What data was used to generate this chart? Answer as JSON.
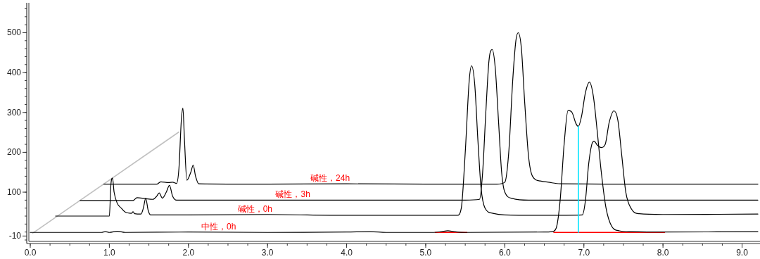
{
  "chart_data": {
    "type": "line",
    "xlim": [
      0,
      9.2
    ],
    "ylim": [
      -20,
      575
    ],
    "xticks": [
      {
        "value": 0,
        "label": "0.0"
      },
      {
        "value": 1,
        "label": "1.0"
      },
      {
        "value": 2,
        "label": "2.0"
      },
      {
        "value": 3,
        "label": "3.0"
      },
      {
        "value": 4,
        "label": "4.0"
      },
      {
        "value": 5,
        "label": "5.0"
      },
      {
        "value": 6,
        "label": "6.0"
      },
      {
        "value": 7,
        "label": "7.0"
      },
      {
        "value": 8,
        "label": "8.0"
      },
      {
        "value": 9,
        "label": "9.0"
      }
    ],
    "yticks": [
      -10,
      100,
      200,
      300,
      400,
      500
    ],
    "series": [
      {
        "type": "line",
        "color": "#c0c0c0",
        "x": [
          0.03,
          1.88
        ],
        "values": [
          -3,
          251
        ]
      },
      {
        "type": "line",
        "color": "#ff0000",
        "x": [
          5.12,
          5.52
        ],
        "values": [
          -1,
          -1
        ]
      },
      {
        "type": "line",
        "color": "#ff0000",
        "x": [
          6.62,
          8.02
        ],
        "values": [
          -1,
          -1
        ]
      },
      {
        "name": "中性，0h",
        "color": "#000000",
        "x": [
          0,
          0.9,
          0.95,
          1.0,
          1.1,
          1.2,
          2.0,
          3.0,
          4.0,
          4.3,
          4.5,
          5.1,
          5.2,
          5.28,
          5.36,
          5.5,
          6.5,
          6.6,
          6.65,
          6.7,
          6.75,
          6.8,
          6.85,
          6.9,
          6.93,
          6.97,
          7.02,
          7.07,
          7.12,
          7.17,
          7.22,
          7.28,
          7.35,
          7.45,
          7.6,
          8.0,
          9.2
        ],
        "values": [
          -1,
          -1,
          1,
          -1,
          2,
          -1,
          0,
          -1,
          0,
          1,
          -1,
          -1,
          1,
          3,
          1,
          -1,
          0,
          1,
          10,
          80,
          220,
          305,
          300,
          272,
          265,
          290,
          350,
          376,
          340,
          250,
          150,
          60,
          15,
          3,
          1,
          0,
          1
        ]
      },
      {
        "name": "碱性，0h",
        "color": "#000000",
        "x": [
          0.32,
          1.0,
          1.02,
          1.04,
          1.06,
          1.1,
          1.15,
          1.2,
          1.28,
          1.3,
          1.32,
          1.4,
          1.43,
          1.46,
          1.49,
          1.52,
          2.0,
          3.0,
          4.0,
          5.0,
          5.4,
          5.45,
          5.5,
          5.55,
          5.58,
          5.62,
          5.66,
          5.7,
          5.75,
          5.85,
          6.0,
          6.5,
          6.98,
          7.02,
          7.06,
          7.1,
          7.13,
          7.17,
          7.22,
          7.27,
          7.32,
          7.38,
          7.43,
          7.48,
          7.53,
          7.6,
          7.7,
          8.0,
          9.2
        ],
        "values": [
          40,
          40,
          120,
          135,
          100,
          72,
          60,
          50,
          47,
          51,
          46,
          45,
          60,
          85,
          55,
          43,
          43,
          44,
          42,
          42,
          42,
          60,
          200,
          380,
          417,
          370,
          230,
          110,
          60,
          47,
          43,
          42,
          43,
          80,
          170,
          220,
          228,
          218,
          212,
          220,
          275,
          304,
          280,
          190,
          100,
          58,
          46,
          44,
          45
        ]
      },
      {
        "name": "碱性，3h",
        "color": "#000000",
        "x": [
          0.63,
          1.3,
          1.35,
          1.45,
          1.55,
          1.6,
          1.63,
          1.67,
          1.72,
          1.76,
          1.8,
          1.85,
          2.5,
          3.5,
          4.5,
          5.5,
          5.68,
          5.72,
          5.76,
          5.8,
          5.84,
          5.88,
          5.92,
          5.96,
          6.0,
          6.1,
          6.3,
          7.0,
          8.0,
          9.2
        ],
        "values": [
          79,
          79,
          86,
          84,
          82,
          90,
          98,
          85,
          100,
          117,
          90,
          80,
          80,
          80,
          80,
          80,
          82,
          150,
          300,
          430,
          458,
          410,
          280,
          150,
          100,
          84,
          80,
          80,
          80,
          80
        ]
      },
      {
        "name": "碱性，24h",
        "color": "#000000",
        "x": [
          0.93,
          1.6,
          1.65,
          1.75,
          1.8,
          1.85,
          1.88,
          1.91,
          1.93,
          1.95,
          1.98,
          2.03,
          2.06,
          2.09,
          2.13,
          3,
          4,
          5,
          5.9,
          6.0,
          6.05,
          6.1,
          6.14,
          6.17,
          6.21,
          6.25,
          6.3,
          6.35,
          6.45,
          6.55,
          6.7,
          8.0,
          9.2
        ],
        "values": [
          120,
          120,
          126,
          124,
          125,
          122,
          160,
          280,
          311,
          230,
          130,
          150,
          168,
          140,
          121,
          120,
          121,
          120,
          120,
          125,
          200,
          380,
          480,
          500,
          460,
          330,
          190,
          140,
          128,
          125,
          121,
          120,
          120
        ]
      },
      {
        "type": "line",
        "color": "#00e5ff",
        "x": [
          6.93,
          6.93
        ],
        "values": [
          -1,
          265
        ]
      }
    ]
  }
}
